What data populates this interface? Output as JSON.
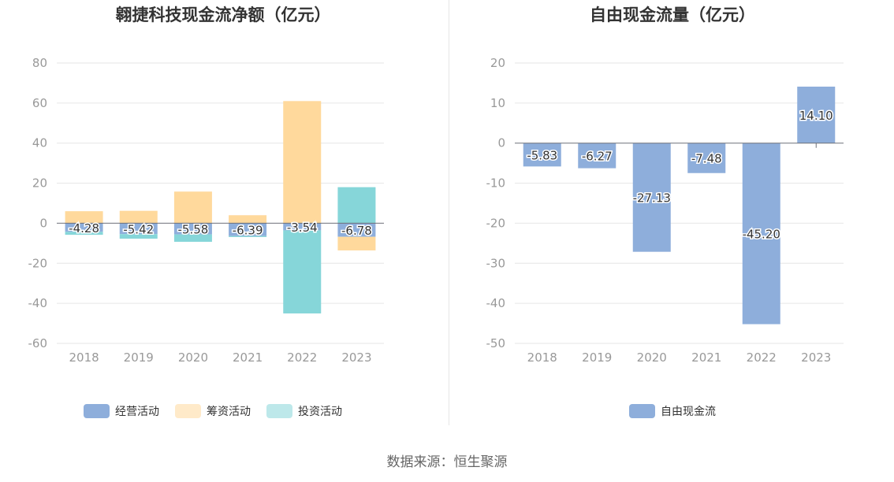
{
  "source_label": "数据来源：恒生聚源",
  "chart_data": [
    {
      "type": "bar",
      "stacked": true,
      "title": "翱捷科技现金流净额（亿元）",
      "categories": [
        "2018",
        "2019",
        "2020",
        "2021",
        "2022",
        "2023"
      ],
      "ylim": [
        -60,
        80
      ],
      "yticks": [
        80,
        60,
        40,
        20,
        0,
        -20,
        -40,
        -60
      ],
      "grid": true,
      "legend_position": "bottom",
      "series": [
        {
          "name": "经营活动",
          "color": "#8eaedb",
          "values": [
            -4.28,
            -5.42,
            -5.58,
            -6.39,
            -3.54,
            -6.78
          ],
          "labels": [
            "-4.28",
            "-5.42",
            "-5.58",
            "-6.39",
            "-3.54",
            "-6.78"
          ]
        },
        {
          "name": "筹资活动",
          "color": "#ffd99c",
          "values": [
            6.0,
            6.2,
            15.8,
            4.0,
            61.0,
            -6.8
          ]
        },
        {
          "name": "投资活动",
          "color": "#86d6d9",
          "values": [
            -1.5,
            -2.3,
            -3.7,
            -0.5,
            -41.5,
            18.0
          ]
        }
      ]
    },
    {
      "type": "bar",
      "title": "自由现金流量（亿元）",
      "categories": [
        "2018",
        "2019",
        "2020",
        "2021",
        "2022",
        "2023"
      ],
      "ylim": [
        -50,
        20
      ],
      "yticks": [
        20,
        10,
        0,
        -10,
        -20,
        -30,
        -40,
        -50
      ],
      "grid": true,
      "legend_position": "bottom",
      "series": [
        {
          "name": "自由现金流",
          "color": "#8eaedb",
          "values": [
            -5.83,
            -6.27,
            -27.13,
            -7.48,
            -45.2,
            14.1
          ],
          "labels": [
            "-5.83",
            "-6.27",
            "-27.13",
            "-7.48",
            "-45.20",
            "14.10"
          ]
        }
      ]
    }
  ]
}
